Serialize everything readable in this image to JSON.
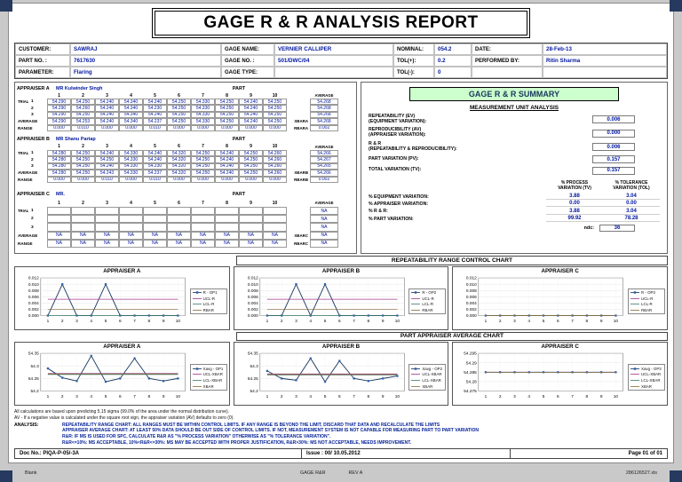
{
  "viewer": {
    "footer_left": "Blank",
    "footer_center": "GAGE R&R",
    "footer_center2": "REV A",
    "footer_right": "286126527.xls"
  },
  "title": "GAGE R & R ANALYSIS REPORT",
  "header": {
    "customer_label": "CUSTOMER:",
    "customer": "SAWRAJ",
    "part_no_label": "PART NO. :",
    "part_no": "7617630",
    "parameter_label": "PARAMETER:",
    "parameter": "Flaring",
    "gage_name_label": "GAGE NAME:",
    "gage_name": "VERNIER CALLIPER",
    "gage_no_label": "GAGE NO. :",
    "gage_no": "501/DWC/04",
    "gage_type_label": "GAGE TYPE:",
    "gage_type": "",
    "nominal_label": "NOMINAL:",
    "nominal": "054.2",
    "tol_plus_label": "TOL(+):",
    "tol_plus": "0.2",
    "tol_minus_label": "TOL(-):",
    "tol_minus": "0",
    "date_label": "DATE:",
    "date": "28-Feb-13",
    "performed_by_label": "PERFORMED BY:",
    "performed_by": "Ritin Sharma"
  },
  "appraisers": [
    {
      "title": "APPRAISER A",
      "name": "MR Kulwinder Singh",
      "part_label": "PART",
      "trial_label": "TRIAL",
      "rows": [
        {
          "kind": "nums",
          "label": "",
          "cells": [
            "1",
            "2",
            "3",
            "4",
            "5",
            "6",
            "7",
            "8",
            "9",
            "10"
          ],
          "tail_label": "",
          "tail": "AVERAGE"
        },
        {
          "kind": "trial",
          "label": "1",
          "cells": [
            "54.290",
            "54.250",
            "54.240",
            "54.340",
            "54.240",
            "54.250",
            "54.330",
            "54.250",
            "54.240",
            "54.250"
          ],
          "tail_label": "",
          "tail": "54.268"
        },
        {
          "kind": "trial",
          "label": "2",
          "cells": [
            "54.290",
            "54.260",
            "54.240",
            "54.340",
            "54.230",
            "54.250",
            "54.330",
            "54.250",
            "54.240",
            "54.250"
          ],
          "tail_label": "",
          "tail": "54.268"
        },
        {
          "kind": "trial",
          "label": "3",
          "cells": [
            "54.290",
            "54.250",
            "54.240",
            "54.340",
            "54.240",
            "54.250",
            "54.330",
            "54.250",
            "54.240",
            "54.250"
          ],
          "tail_label": "",
          "tail": "54.268"
        },
        {
          "kind": "avg",
          "label": "AVERAGE",
          "cells": [
            "54.290",
            "54.253",
            "54.240",
            "54.340",
            "54.237",
            "54.250",
            "54.330",
            "54.250",
            "54.240",
            "54.250"
          ],
          "tail_label": "XBARA",
          "tail": "54.268"
        },
        {
          "kind": "range",
          "label": "RANGE",
          "cells": [
            "0.000",
            "0.010",
            "0.000",
            "0.000",
            "0.010",
            "0.000",
            "0.000",
            "0.000",
            "0.000",
            "0.000"
          ],
          "tail_label": "RBARA",
          "tail": "0.002"
        }
      ]
    },
    {
      "title": "APPRAISER B",
      "name": "MR Shanu Partap",
      "part_label": "PART",
      "trial_label": "TRIAL",
      "rows": [
        {
          "kind": "nums",
          "label": "",
          "cells": [
            "1",
            "2",
            "3",
            "4",
            "5",
            "6",
            "7",
            "8",
            "9",
            "10"
          ],
          "tail_label": "",
          "tail": "AVERAGE"
        },
        {
          "kind": "trial",
          "label": "1",
          "cells": [
            "54.280",
            "54.250",
            "54.240",
            "54.330",
            "54.240",
            "54.320",
            "54.250",
            "54.240",
            "54.250",
            "54.260"
          ],
          "tail_label": "",
          "tail": "54.266"
        },
        {
          "kind": "trial",
          "label": "2",
          "cells": [
            "54.280",
            "54.250",
            "54.250",
            "54.330",
            "54.240",
            "54.320",
            "54.250",
            "54.240",
            "54.250",
            "54.260"
          ],
          "tail_label": "",
          "tail": "54.267"
        },
        {
          "kind": "trial",
          "label": "3",
          "cells": [
            "54.280",
            "54.250",
            "54.240",
            "54.330",
            "54.230",
            "54.320",
            "54.250",
            "54.240",
            "54.250",
            "54.260"
          ],
          "tail_label": "",
          "tail": "54.265"
        },
        {
          "kind": "avg",
          "label": "AVERAGE",
          "cells": [
            "54.280",
            "54.250",
            "54.243",
            "54.330",
            "54.237",
            "54.320",
            "54.250",
            "54.240",
            "54.250",
            "54.260"
          ],
          "tail_label": "XBARB",
          "tail": "54.266"
        },
        {
          "kind": "range",
          "label": "RANGE",
          "cells": [
            "0.000",
            "0.000",
            "0.010",
            "0.000",
            "0.010",
            "0.000",
            "0.000",
            "0.000",
            "0.000",
            "0.000"
          ],
          "tail_label": "RBARB",
          "tail": "0.002"
        }
      ]
    },
    {
      "title": "APPRAISER C",
      "name": "MR.",
      "part_label": "PART",
      "trial_label": "TRIAL",
      "rows": [
        {
          "kind": "nums",
          "label": "",
          "cells": [
            "1",
            "2",
            "3",
            "4",
            "5",
            "6",
            "7",
            "8",
            "9",
            "10"
          ],
          "tail_label": "",
          "tail": "AVERAGE"
        },
        {
          "kind": "trial",
          "label": "1",
          "cells": [
            "",
            "",
            "",
            "",
            "",
            "",
            "",
            "",
            "",
            ""
          ],
          "tail_label": "",
          "tail": "NA"
        },
        {
          "kind": "trial",
          "label": "2",
          "cells": [
            "",
            "",
            "",
            "",
            "",
            "",
            "",
            "",
            "",
            ""
          ],
          "tail_label": "",
          "tail": "NA"
        },
        {
          "kind": "trial",
          "label": "3",
          "cells": [
            "",
            "",
            "",
            "",
            "",
            "",
            "",
            "",
            "",
            ""
          ],
          "tail_label": "",
          "tail": "NA"
        },
        {
          "kind": "avg",
          "label": "AVERAGE",
          "cells": [
            "NA",
            "NA",
            "NA",
            "NA",
            "NA",
            "NA",
            "NA",
            "NA",
            "NA",
            "NA"
          ],
          "tail_label": "XBARC",
          "tail": "NA"
        },
        {
          "kind": "range",
          "label": "RANGE",
          "cells": [
            "NA",
            "NA",
            "NA",
            "NA",
            "NA",
            "NA",
            "NA",
            "NA",
            "NA",
            "NA"
          ],
          "tail_label": "RBARC",
          "tail": "NA"
        }
      ]
    }
  ],
  "summary": {
    "title": "GAGE R & R SUMMARY",
    "subtitle": "MEASUREMENT UNIT ANALYSIS",
    "metrics": [
      {
        "l1": "REPEATABILITY (EV)",
        "l2": "(EQUIPMENT VARIATION):",
        "value": "0.006"
      },
      {
        "l1": "REPRODUCIBILITY (AV)",
        "l2": "(APPRAISER VARIATION):",
        "value": "0.000"
      },
      {
        "l1": "R & R",
        "l2": "(REPEATABILITY & REPRODUCIBILITY):",
        "value": "0.006"
      },
      {
        "l1": "PART VARIATION (PV):",
        "l2": "",
        "value": "0.157"
      },
      {
        "l1": "TOTAL VARIATION (TV):",
        "l2": "",
        "value": "0.157"
      }
    ],
    "pct_header1": "% PROCESS",
    "pct_header1b": "VARIATION (TV)",
    "pct_header2": "% TOLERANCE",
    "pct_header2b": "VARIATION (TOL)",
    "pct_rows": [
      {
        "label": "% EQUIPMENT VARIATION:",
        "tv": "3.88",
        "tol": "3.04"
      },
      {
        "label": "% APPRAISER VARIATION:",
        "tv": "0.00",
        "tol": "0.00"
      },
      {
        "label": "% R & R:",
        "tv": "3.88",
        "tol": "3.04"
      },
      {
        "label": "% PART VARIATION:",
        "tv": "99.92",
        "tol": "78.28"
      }
    ],
    "ndc_label": "ndc:",
    "ndc": "36"
  },
  "charts_section": {
    "repeatability_title": "REPEATABILITY RANGE CONTROL CHART",
    "average_title": "PART APPRAISER AVERAGE CHART"
  },
  "chart_data": [
    {
      "type": "line",
      "panel": "repeatability",
      "title": "APPRAISER  A",
      "x": [
        "1",
        "2",
        "3",
        "4",
        "5",
        "6",
        "7",
        "8",
        "9",
        "10"
      ],
      "ylim": [
        0,
        0.012
      ],
      "ytick_values": [
        0,
        0.002,
        0.004,
        0.006,
        0.008,
        0.01,
        0.012
      ],
      "ytick_labels": [
        "0.000",
        "0.002",
        "0.004",
        "0.006",
        "0.008",
        "0.010",
        "0.012"
      ],
      "series": [
        {
          "name": "R - OP1",
          "values": [
            0,
            0.01,
            0,
            0,
            0.01,
            0,
            0,
            0,
            0,
            0
          ]
        },
        {
          "name": "UCL-R",
          "const": 0.0052
        },
        {
          "name": "LCL-R",
          "const": 0
        },
        {
          "name": "RBAR",
          "const": 0.002
        }
      ]
    },
    {
      "type": "line",
      "panel": "repeatability",
      "title": "APPRAISER  B",
      "x": [
        "1",
        "2",
        "3",
        "4",
        "5",
        "6",
        "7",
        "8",
        "9",
        "10"
      ],
      "ylim": [
        0,
        0.012
      ],
      "ytick_values": [
        0,
        0.002,
        0.004,
        0.006,
        0.008,
        0.01,
        0.012
      ],
      "ytick_labels": [
        "0.000",
        "0.002",
        "0.004",
        "0.006",
        "0.008",
        "0.010",
        "0.012"
      ],
      "series": [
        {
          "name": "R - OP2",
          "values": [
            0,
            0,
            0.01,
            0,
            0.01,
            0,
            0,
            0,
            0,
            0
          ]
        },
        {
          "name": "UCL-R",
          "const": 0.0052
        },
        {
          "name": "LCL-R",
          "const": 0
        },
        {
          "name": "RBAR",
          "const": 0.002
        }
      ]
    },
    {
      "type": "line",
      "panel": "repeatability",
      "title": "APPRAISER  C",
      "x": [
        "1",
        "2",
        "3",
        "4",
        "5",
        "6",
        "7",
        "8",
        "9",
        "10"
      ],
      "ylim": [
        0,
        0.012
      ],
      "ytick_values": [
        0,
        0.002,
        0.004,
        0.006,
        0.008,
        0.01,
        0.012
      ],
      "ytick_labels": [
        "0.000",
        "0.002",
        "0.004",
        "0.006",
        "0.008",
        "0.010",
        "0.012"
      ],
      "series": [
        {
          "name": "R - OP3",
          "values": [
            0,
            0,
            0,
            0,
            0,
            0,
            0,
            0,
            0,
            0
          ]
        },
        {
          "name": "UCL-R",
          "const": 0
        },
        {
          "name": "LCL-R",
          "const": 0
        },
        {
          "name": "RBAR",
          "const": 0
        }
      ]
    },
    {
      "type": "line",
      "panel": "average",
      "title": "APPRAISER  A",
      "x": [
        "1",
        "2",
        "3",
        "4",
        "5",
        "6",
        "7",
        "8",
        "9",
        "10"
      ],
      "ylim": [
        54.2,
        54.35
      ],
      "ytick_values": [
        54.2,
        54.25,
        54.3,
        54.35
      ],
      "ytick_labels": [
        "54.2",
        "54.25",
        "54.3",
        "54.35"
      ],
      "series": [
        {
          "name": "Xavg - OP1",
          "values": [
            54.29,
            54.253,
            54.24,
            54.34,
            54.237,
            54.25,
            54.33,
            54.25,
            54.24,
            54.25
          ]
        },
        {
          "name": "UCL-XBAR",
          "const": 54.27
        },
        {
          "name": "LCL-XBAR",
          "const": 54.266
        },
        {
          "name": "XBAR",
          "const": 54.268
        }
      ]
    },
    {
      "type": "line",
      "panel": "average",
      "title": "APPRAISER  B",
      "x": [
        "1",
        "2",
        "3",
        "4",
        "5",
        "6",
        "7",
        "8",
        "9",
        "10"
      ],
      "ylim": [
        54.2,
        54.35
      ],
      "ytick_values": [
        54.2,
        54.25,
        54.3,
        54.35
      ],
      "ytick_labels": [
        "54.2",
        "54.25",
        "54.3",
        "54.35"
      ],
      "series": [
        {
          "name": "Xavg - OP2",
          "values": [
            54.28,
            54.25,
            54.243,
            54.33,
            54.237,
            54.32,
            54.25,
            54.24,
            54.25,
            54.26
          ]
        },
        {
          "name": "UCL-XBAR",
          "const": 54.268
        },
        {
          "name": "LCL-XBAR",
          "const": 54.264
        },
        {
          "name": "XBAR",
          "const": 54.266
        }
      ]
    },
    {
      "type": "line",
      "panel": "average",
      "title": "APPRAISER  C",
      "x": [
        "1",
        "2",
        "3",
        "4",
        "5",
        "6",
        "7",
        "8",
        "9",
        "10"
      ],
      "ylim": [
        54.275,
        54.295
      ],
      "ytick_values": [
        54.275,
        54.28,
        54.285,
        54.29,
        54.295
      ],
      "ytick_labels": [
        "54.275",
        "54.28",
        "54.285",
        "54.29",
        "54.295"
      ],
      "series": [
        {
          "name": "Xavg - OP3",
          "values": [
            54.285,
            54.285,
            54.285,
            54.285,
            54.285,
            54.285,
            54.285,
            54.285,
            54.285,
            54.285
          ]
        },
        {
          "name": "UCL-XBAR",
          "const": 54.285
        },
        {
          "name": "LCL-XBAR",
          "const": 54.285
        },
        {
          "name": "XBAR",
          "const": 54.285
        }
      ]
    }
  ],
  "notes": {
    "line1": "All calculations are based upon predicting 5.15 sigma (99.0% of the area under the normal distribution curve).",
    "line2": "AV - If a negative value is calculated under the square root sign, the appraiser variation (AV) defaults to zero (0).",
    "analysis_label": "ANALYSIS:",
    "analysis": [
      "REPEATABILITY RANGE CHART: ALL RANGES MUST BE WITHIN CONTROL LIMITS. IF ANY RANGE IS BEYOND THE LIMIT, DISCARD THAT DATA AND RECALCULATE THE LIMITS",
      "APPRAISER AVERAGE CHART: AT LEAST 50% DATA SHOULD BE OUT SIDE OF CONTROL LIMITS. IF NOT, MEASUREMENT SYSTEM IS NOT CAPABLE FOR MEASURING PART TO PART VARIATION",
      "R&R: IF MS IS USED FOR SPC, CALCULATE R&R AS \"% PROCESS VARIATION\" OTHERWISE AS \"% TOLERANCE VARIATION\".",
      "R&R<=10%: MS ACCEPTABLE, 10%<R&R<=30%: MS MAY BE ACCEPTED WITH PROPER JUSTIFICATION, R&R>30%: MS NOT ACCEPTABLE, NEEDS IMPROVEMENT."
    ]
  },
  "footer": {
    "doc_no": "Doc No.: PIQA-P-05/-3A",
    "issue": "Issue : 00/ 10.05.2012",
    "page": "Page 01 of 01"
  }
}
